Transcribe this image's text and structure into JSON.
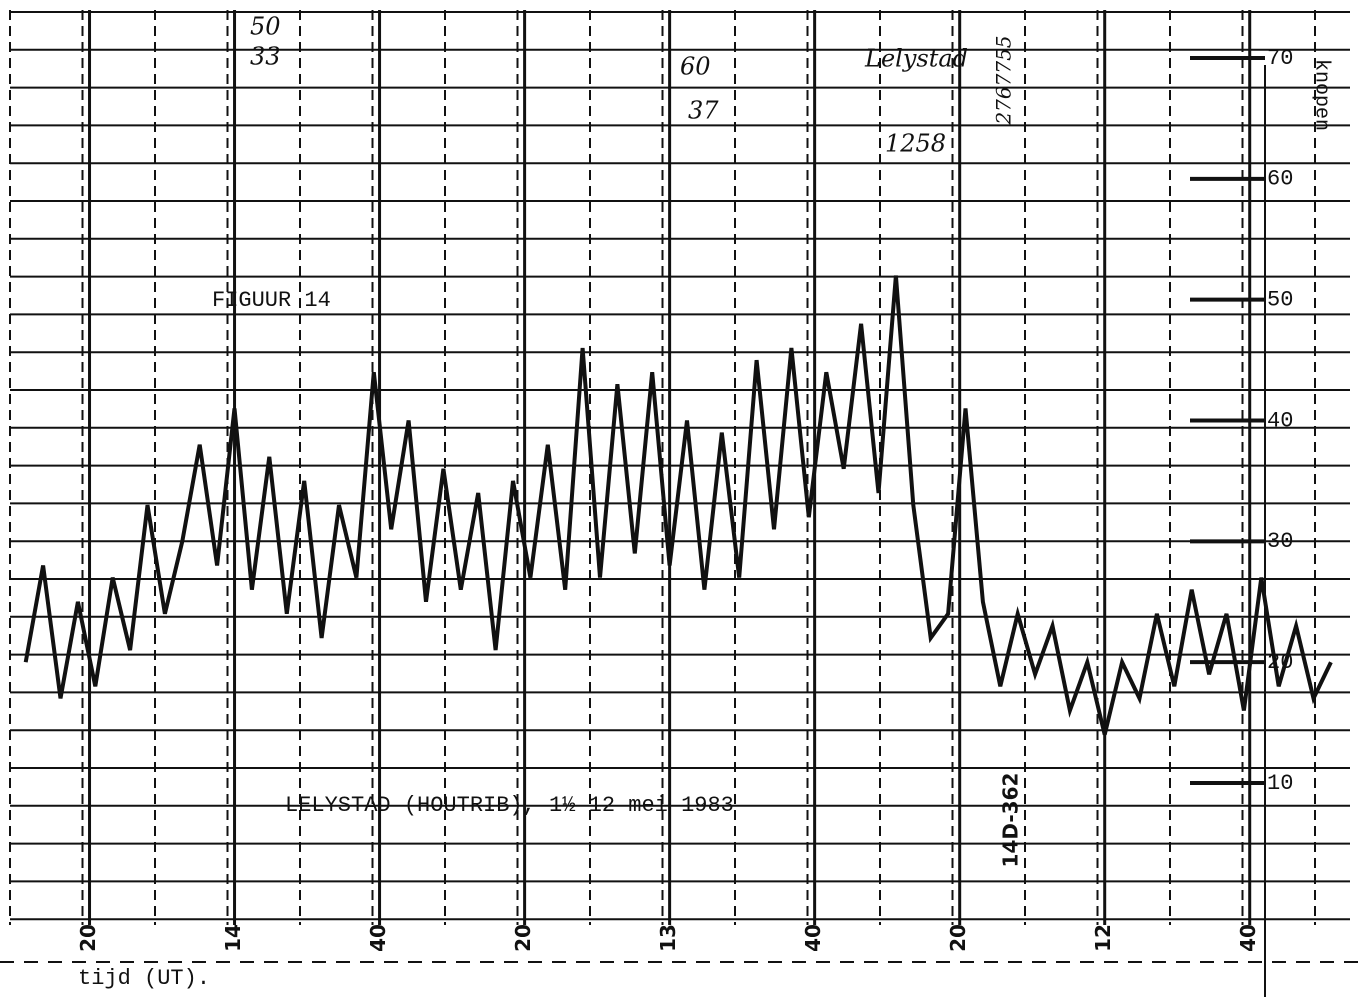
{
  "chart_data": {
    "type": "line",
    "title": "FIGUUR 14",
    "subtitle": "LELYSTAD (HOUTRIB), 1½ 12 mei 1983",
    "x_label": "tijd (UT).",
    "y_label": "knopen",
    "code": "14D-362",
    "annotations": [
      "50",
      "33",
      "60",
      "37",
      "Lelystad",
      "1258",
      "2767755"
    ],
    "color": "#111111",
    "x": [
      14.48,
      14.44,
      14.4,
      14.36,
      14.32,
      14.28,
      14.24,
      14.2,
      14.16,
      14.12,
      14.08,
      14.04,
      14,
      13.96,
      13.92,
      13.88,
      13.84,
      13.8,
      13.76,
      13.72,
      13.68,
      13.64,
      13.6,
      13.56,
      13.52,
      13.48,
      13.44,
      13.4,
      13.36,
      13.32,
      13.28,
      13.24,
      13.2,
      13.16,
      13.12,
      13.08,
      13.04,
      13,
      12.96,
      12.92,
      12.88,
      12.84,
      12.8,
      12.76,
      12.72,
      12.68,
      12.64,
      12.6,
      12.56,
      12.52,
      12.48,
      12.44,
      12.4,
      12.36,
      12.32,
      12.28,
      12.24,
      12.2,
      12.16,
      12.12,
      12.08,
      12.04,
      12,
      11.96,
      11.92,
      11.88,
      11.84,
      11.8,
      11.76,
      11.72,
      11.68,
      11.64,
      11.6,
      11.56,
      11.52,
      11.48
    ],
    "values": [
      20,
      28,
      17,
      25,
      18,
      27,
      21,
      33,
      24,
      30,
      38,
      28,
      41,
      26,
      37,
      24,
      35,
      22,
      33,
      27,
      44,
      31,
      40,
      25,
      36,
      26,
      34,
      21,
      35,
      27,
      38,
      26,
      46,
      27,
      43,
      29,
      44,
      28,
      40,
      26,
      39,
      27,
      45,
      31,
      46,
      32,
      44,
      36,
      48,
      34,
      52,
      33,
      22,
      24,
      41,
      25,
      18,
      24,
      19,
      23,
      16,
      20,
      14,
      20,
      17,
      24,
      18,
      26,
      19,
      24,
      16,
      27,
      18,
      23,
      17,
      20
    ],
    "xlim": [
      14.5,
      11.45
    ],
    "xticks": [
      {
        "value": 14.3333,
        "label": "20"
      },
      {
        "value": 14,
        "label": "14"
      },
      {
        "value": 13.6667,
        "label": "40"
      },
      {
        "value": 13.3333,
        "label": "20"
      },
      {
        "value": 13,
        "label": "13"
      },
      {
        "value": 12.6667,
        "label": "40"
      },
      {
        "value": 12.3333,
        "label": "20"
      },
      {
        "value": 12,
        "label": "12"
      },
      {
        "value": 11.6667,
        "label": "40"
      }
    ],
    "ylim": [
      10,
      70
    ],
    "yticks": [
      10,
      20,
      30,
      40,
      50,
      60,
      70
    ],
    "grid": true
  }
}
